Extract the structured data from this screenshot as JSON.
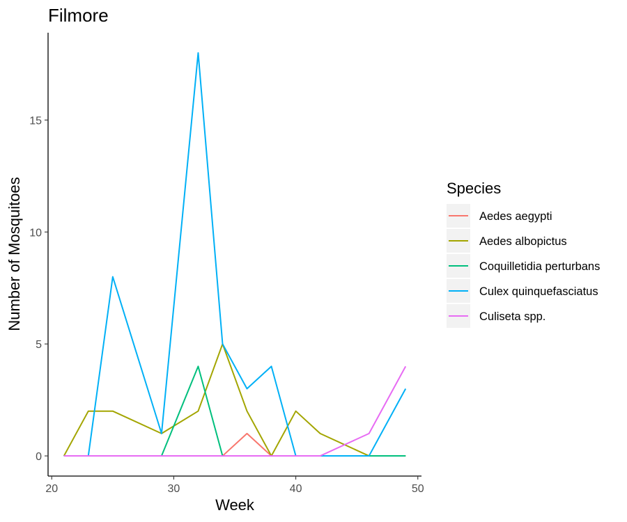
{
  "chart_data": {
    "type": "line",
    "title": "Filmore",
    "xlabel": "Week",
    "ylabel": "Number of Mosquitoes",
    "xlim": [
      19.7,
      50.3
    ],
    "ylim": [
      -0.9,
      18.9
    ],
    "xticks": [
      20,
      30,
      40,
      50
    ],
    "yticks": [
      0,
      5,
      10,
      15
    ],
    "grid": false,
    "legend": {
      "title": "Species",
      "position": "right"
    },
    "series": [
      {
        "name": "Aedes aegypti",
        "color": "#F8766D",
        "x": [
          21,
          23,
          25,
          29,
          32,
          34,
          36,
          38,
          40,
          42,
          46,
          49
        ],
        "y": [
          0,
          0,
          0,
          0,
          0,
          0,
          1,
          0,
          0,
          0,
          0,
          0
        ]
      },
      {
        "name": "Aedes albopictus",
        "color": "#A3A500",
        "x": [
          21,
          23,
          25,
          29,
          32,
          34,
          36,
          38,
          40,
          42,
          46,
          49
        ],
        "y": [
          0,
          2,
          2,
          1,
          2,
          5,
          2,
          0,
          2,
          1,
          0,
          0
        ]
      },
      {
        "name": "Coquilletidia perturbans",
        "color": "#00BF7D",
        "x": [
          21,
          23,
          25,
          29,
          32,
          34,
          36,
          38,
          40,
          42,
          46,
          49
        ],
        "y": [
          0,
          0,
          0,
          0,
          4,
          0,
          0,
          0,
          0,
          0,
          0,
          0
        ]
      },
      {
        "name": "Culex quinquefasciatus",
        "color": "#00B0F6",
        "x": [
          21,
          23,
          25,
          29,
          32,
          34,
          36,
          38,
          40,
          42,
          46,
          49
        ],
        "y": [
          0,
          0,
          8,
          1,
          18,
          5,
          3,
          4,
          0,
          0,
          0,
          3
        ]
      },
      {
        "name": "Culiseta spp.",
        "color": "#E76BF3",
        "x": [
          21,
          23,
          25,
          29,
          32,
          34,
          36,
          38,
          40,
          42,
          46,
          49
        ],
        "y": [
          0,
          0,
          0,
          0,
          0,
          0,
          0,
          0,
          0,
          0,
          1,
          4
        ]
      }
    ]
  }
}
